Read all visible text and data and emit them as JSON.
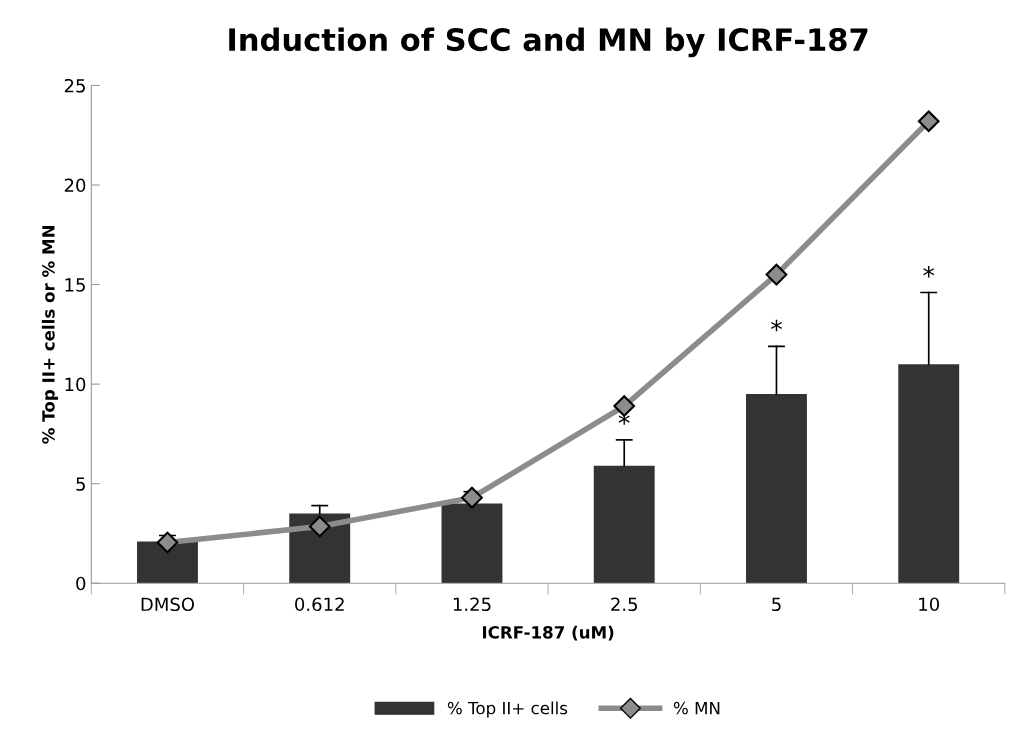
{
  "chart_data": {
    "type": "bar",
    "title": "Induction of SCC and MN by ICRF-187",
    "xlabel": "ICRF-187 (uM)",
    "ylabel": "% Top II+ cells or % MN",
    "categories": [
      "DMSO",
      "0.612",
      "1.25",
      "2.5",
      "5",
      "10"
    ],
    "series": [
      {
        "name": "% Top II+ cells",
        "color": "#333333",
        "values": [
          2.1,
          3.5,
          4.0,
          5.9,
          9.5,
          11.0
        ],
        "errors": [
          [
            2.1,
            2.4
          ],
          [
            3.5,
            3.9
          ],
          [
            4.0,
            4.6
          ],
          [
            5.9,
            7.2
          ],
          [
            9.5,
            11.9
          ],
          [
            11.0,
            14.6
          ]
        ]
      },
      {
        "name": "% MN",
        "type": "line",
        "color": "#8c8c8c",
        "marker": "diamond",
        "values": [
          2.05,
          2.85,
          4.3,
          8.9,
          15.5,
          23.2
        ]
      }
    ],
    "annotations": [
      {
        "text": "*",
        "x": "2.5",
        "y": 7.2
      },
      {
        "text": "*",
        "x": "5",
        "y": 11.9
      },
      {
        "text": "*",
        "x": "10",
        "y": 14.6
      }
    ],
    "ylim": [
      0,
      25
    ],
    "yticks": [
      0,
      5,
      10,
      15,
      20,
      25
    ],
    "grid": false,
    "legend": "bottom"
  }
}
